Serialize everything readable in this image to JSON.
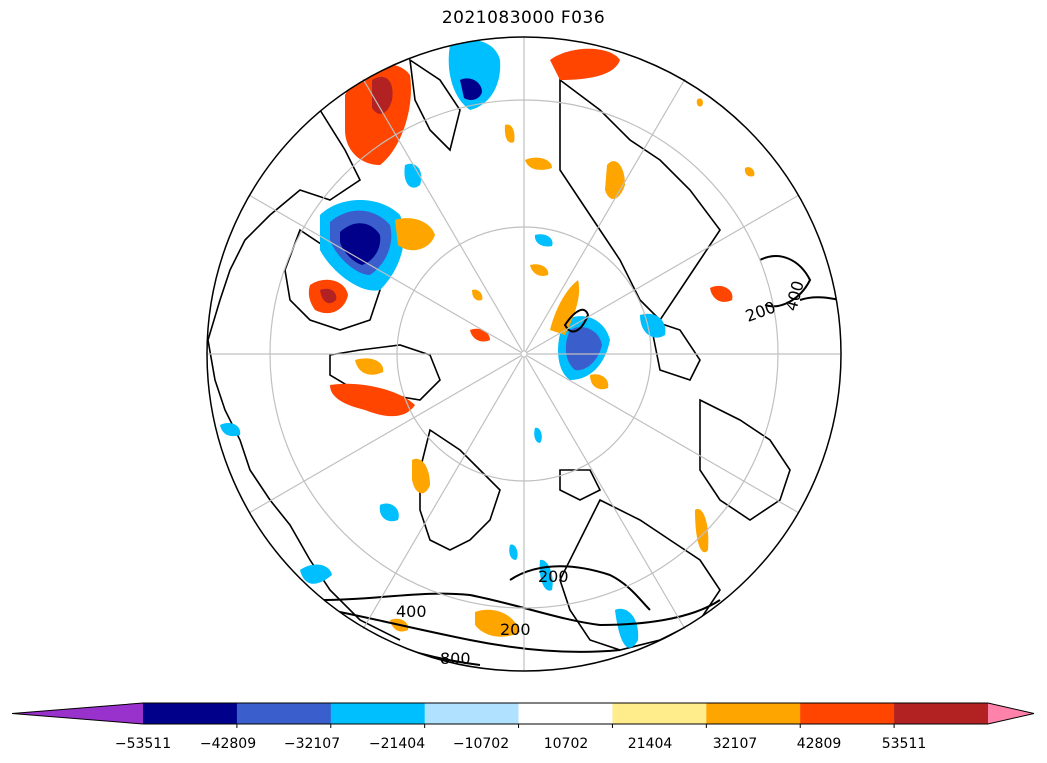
{
  "title": "2021083000 F036",
  "map": {
    "projection": "north polar stereographic",
    "contour_labels": [
      "200",
      "400",
      "200",
      "200",
      "400",
      "200",
      "200",
      "400",
      "200",
      "200",
      "400",
      "200",
      "800"
    ]
  },
  "colorbar": {
    "extend": "both",
    "colors": [
      "#9932CC",
      "#00008B",
      "#3A5FCD",
      "#00BFFF",
      "#B0E2FF",
      "#FFFFFF",
      "#FFEC8B",
      "#FFA500",
      "#FF4500",
      "#B22222",
      "#FF82AB"
    ],
    "tick_labels": [
      "−53511",
      "−42809",
      "−32107",
      "−21404",
      "−10702",
      "10702",
      "21404",
      "32107",
      "42809",
      "53511"
    ]
  }
}
